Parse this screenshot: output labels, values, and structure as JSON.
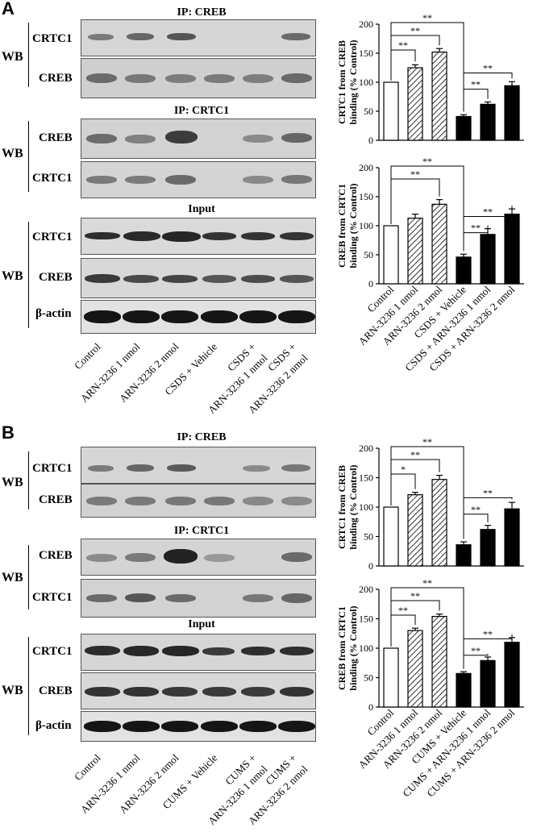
{
  "panels": [
    {
      "letter": "A",
      "stress": "CSDS",
      "ip_creb_title": "IP: CREB",
      "ip_crtc1_title": "IP: CRTC1",
      "input_title": "Input",
      "wb_label": "WB",
      "blot_labels": {
        "crtc1": "CRTC1",
        "creb": "CREB",
        "actin": "β-actin"
      },
      "lane_labels": [
        "Control",
        "ARN-3236 1 nmol",
        "ARN-3236 2 nmol",
        "CSDS + Vehicle",
        "CSDS +",
        "ARN-3236 1 nmol",
        "CSDS +",
        "ARN-3236 2 nmol"
      ],
      "bar_labels": [
        "Control",
        "ARN-3236 1 nmol",
        "ARN-3236 2 nmol",
        "CSDS + Vehicle",
        "CSDS + ARN-3236 1 nmol",
        "CSDS + ARN-3236 2 nmol"
      ]
    },
    {
      "letter": "B",
      "stress": "CUMS",
      "ip_creb_title": "IP: CREB",
      "ip_crtc1_title": "IP: CRTC1",
      "input_title": "Input",
      "wb_label": "WB",
      "blot_labels": {
        "crtc1": "CRTC1",
        "creb": "CREB",
        "actin": "β-actin"
      },
      "lane_labels": [
        "Control",
        "ARN-3236 1 nmol",
        "ARN-3236 2 nmol",
        "CUMS + Vehicle",
        "CUMS +",
        "ARN-3236 1 nmol",
        "CUMS +",
        "ARN-3236 2 nmol"
      ],
      "bar_labels": [
        "Control",
        "ARN-3236 1 nmol",
        "ARN-3236 2 nmol",
        "CUMS + Vehicle",
        "CUMS + ARN-3236 1 nmol",
        "CUMS + ARN-3236 2 nmol"
      ]
    }
  ],
  "chart_data": [
    {
      "type": "bar",
      "panel": "A",
      "ylabel": "CRTC1 from CREB binding (% Control)",
      "ylim": [
        0,
        200
      ],
      "yticks": [
        0,
        50,
        100,
        150,
        200
      ],
      "categories": [
        "Control",
        "ARN-3236 1 nmol",
        "ARN-3236 2 nmol",
        "CSDS + Vehicle",
        "CSDS + ARN-3236 1 nmol",
        "CSDS + ARN-3236 2 nmol"
      ],
      "values": [
        100,
        125,
        152,
        41,
        62,
        94
      ],
      "errors": [
        0,
        5,
        6,
        3,
        4,
        7
      ],
      "sig": [
        {
          "from": 0,
          "to": 1,
          "label": "**"
        },
        {
          "from": 0,
          "to": 2,
          "label": "**"
        },
        {
          "from": 0,
          "to": 3,
          "label": "**"
        },
        {
          "from": 3,
          "to": 4,
          "label": "**"
        },
        {
          "from": 3,
          "to": 5,
          "label": "**"
        }
      ]
    },
    {
      "type": "bar",
      "panel": "A",
      "ylabel": "CREB from CRTC1 binding (% Control)",
      "ylim": [
        0,
        200
      ],
      "yticks": [
        0,
        50,
        100,
        150,
        200
      ],
      "categories": [
        "Control",
        "ARN-3236 1 nmol",
        "ARN-3236 2 nmol",
        "CSDS + Vehicle",
        "CSDS + ARN-3236 1 nmol",
        "CSDS + ARN-3236 2 nmol"
      ],
      "values": [
        100,
        113,
        137,
        46,
        85,
        120
      ],
      "errors": [
        0,
        7,
        8,
        5,
        10,
        9
      ],
      "sig": [
        {
          "from": 0,
          "to": 2,
          "label": "**"
        },
        {
          "from": 0,
          "to": 3,
          "label": "**"
        },
        {
          "from": 3,
          "to": 4,
          "label": "**"
        },
        {
          "from": 3,
          "to": 5,
          "label": "**"
        }
      ]
    },
    {
      "type": "bar",
      "panel": "B",
      "ylabel": "CRTC1 from CREB binding (% Control)",
      "ylim": [
        0,
        200
      ],
      "yticks": [
        0,
        50,
        100,
        150,
        200
      ],
      "categories": [
        "Control",
        "ARN-3236 1 nmol",
        "ARN-3236 2 nmol",
        "CUMS + Vehicle",
        "CUMS + ARN-3236 1 nmol",
        "CUMS + ARN-3236 2 nmol"
      ],
      "values": [
        100,
        121,
        147,
        36,
        62,
        97
      ],
      "errors": [
        0,
        4,
        7,
        5,
        7,
        11
      ],
      "sig": [
        {
          "from": 0,
          "to": 1,
          "label": "*"
        },
        {
          "from": 0,
          "to": 2,
          "label": "**"
        },
        {
          "from": 0,
          "to": 3,
          "label": "**"
        },
        {
          "from": 3,
          "to": 4,
          "label": "**"
        },
        {
          "from": 3,
          "to": 5,
          "label": "**"
        }
      ]
    },
    {
      "type": "bar",
      "panel": "B",
      "ylabel": "CREB from CRTC1 binding (% Control)",
      "ylim": [
        0,
        200
      ],
      "yticks": [
        0,
        50,
        100,
        150,
        200
      ],
      "categories": [
        "Control",
        "ARN-3236 1 nmol",
        "ARN-3236 2 nmol",
        "CUMS + Vehicle",
        "CUMS + ARN-3236 1 nmol",
        "CUMS + ARN-3236 2 nmol"
      ],
      "values": [
        100,
        130,
        154,
        57,
        79,
        110
      ],
      "errors": [
        0,
        4,
        4,
        3,
        6,
        8
      ],
      "sig": [
        {
          "from": 0,
          "to": 1,
          "label": "**"
        },
        {
          "from": 0,
          "to": 2,
          "label": "**"
        },
        {
          "from": 0,
          "to": 3,
          "label": "**"
        },
        {
          "from": 3,
          "to": 4,
          "label": "**"
        },
        {
          "from": 3,
          "to": 5,
          "label": "**"
        }
      ]
    }
  ]
}
